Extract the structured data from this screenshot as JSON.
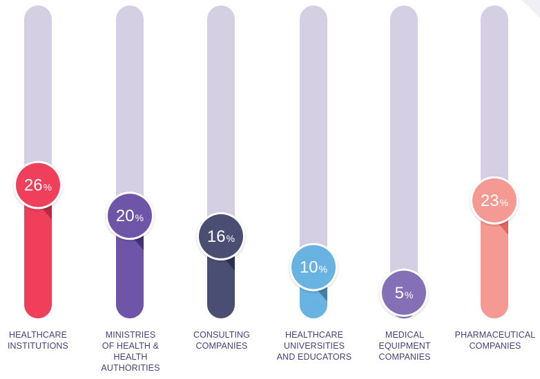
{
  "chart_data": {
    "type": "bar",
    "categories": [
      "HEALTHCARE\nINSTITUTIONS",
      "MINISTRIES\nOF HEALTH &\nHEALTH\nAUTHORITIES",
      "CONSULTING\nCOMPANIES",
      "HEALTHCARE\nUNIVERSITIES\nAND EDUCATORS",
      "MEDICAL\nEQUIPMENT\nCOMPANIES",
      "PHARMACEUTICAL\nCOMPANIES"
    ],
    "values": [
      26,
      20,
      16,
      10,
      5,
      23
    ],
    "value_labels": [
      "26",
      "20",
      "16",
      "10",
      "5",
      "23"
    ],
    "unit": "%",
    "ylim": [
      0,
      61
    ],
    "colors": [
      "#ef3f5a",
      "#6e55a8",
      "#4a4e72",
      "#69b3e3",
      "#8570b8",
      "#f59a93"
    ],
    "shade_colors": [
      "#b12a42",
      "#3e2f72",
      "#2b2e4d",
      "#3e7ea6",
      "#4f4470",
      "#e2625f"
    ],
    "track_color": "#d4cfe2"
  }
}
